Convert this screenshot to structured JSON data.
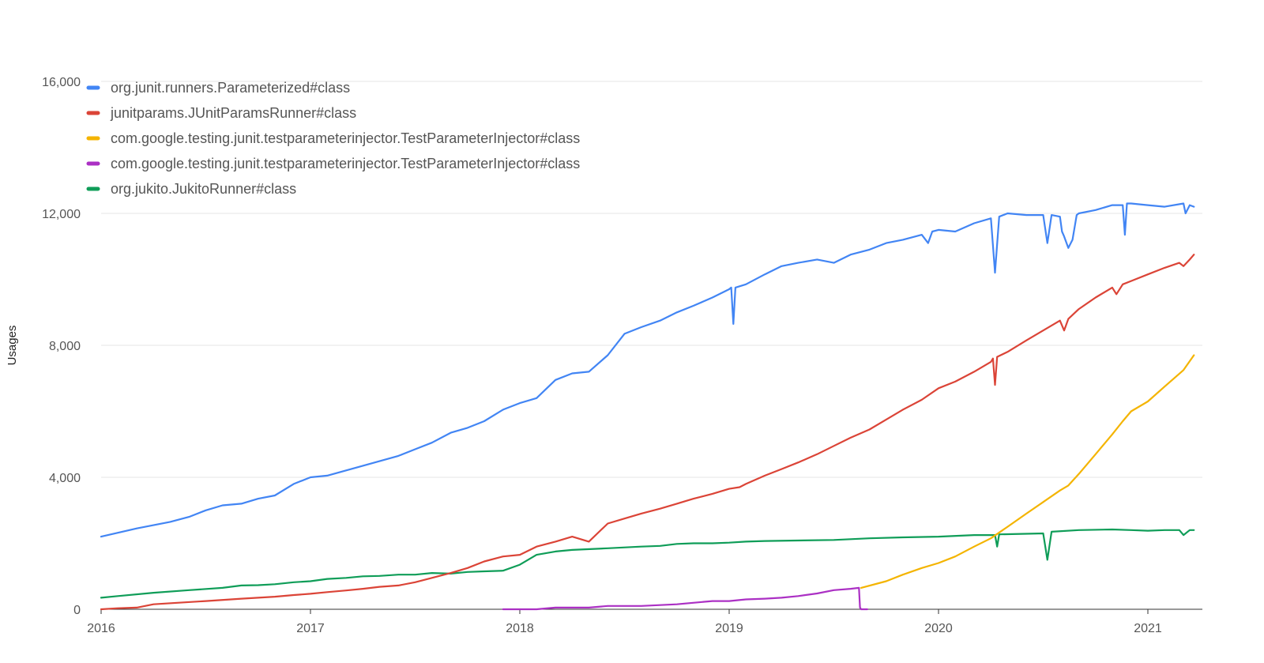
{
  "chart_data": {
    "type": "line",
    "title": "",
    "xlabel": "",
    "ylabel": "Usages",
    "ylim": [
      0,
      16000
    ],
    "xlim": [
      2016.0,
      2021.27
    ],
    "yticks": [
      0,
      4000,
      8000,
      12000,
      16000
    ],
    "ytick_labels": [
      "0",
      "4,000",
      "8,000",
      "12,000",
      "16,000"
    ],
    "xticks": [
      2016,
      2017,
      2018,
      2019,
      2020,
      2021
    ],
    "xtick_labels": [
      "2016",
      "2017",
      "2018",
      "2019",
      "2020",
      "2021"
    ],
    "grid": true,
    "legend_position": "top-left",
    "series": [
      {
        "name": "org.junit.runners.Parameterized#class",
        "color": "#4285F4",
        "points": [
          [
            2016.0,
            2200
          ],
          [
            2016.17,
            2450
          ],
          [
            2016.33,
            2650
          ],
          [
            2016.42,
            2800
          ],
          [
            2016.5,
            3000
          ],
          [
            2016.58,
            3150
          ],
          [
            2016.67,
            3200
          ],
          [
            2016.75,
            3350
          ],
          [
            2016.83,
            3450
          ],
          [
            2016.92,
            3800
          ],
          [
            2017.0,
            4000
          ],
          [
            2017.08,
            4050
          ],
          [
            2017.25,
            4350
          ],
          [
            2017.42,
            4650
          ],
          [
            2017.5,
            4850
          ],
          [
            2017.58,
            5050
          ],
          [
            2017.67,
            5350
          ],
          [
            2017.75,
            5500
          ],
          [
            2017.83,
            5700
          ],
          [
            2017.92,
            6050
          ],
          [
            2018.0,
            6250
          ],
          [
            2018.08,
            6400
          ],
          [
            2018.17,
            6950
          ],
          [
            2018.25,
            7150
          ],
          [
            2018.33,
            7200
          ],
          [
            2018.42,
            7700
          ],
          [
            2018.5,
            8350
          ],
          [
            2018.58,
            8550
          ],
          [
            2018.67,
            8750
          ],
          [
            2018.75,
            9000
          ],
          [
            2018.83,
            9200
          ],
          [
            2018.92,
            9450
          ],
          [
            2019.0,
            9700
          ],
          [
            2019.01,
            9750
          ],
          [
            2019.02,
            8650
          ],
          [
            2019.03,
            9750
          ],
          [
            2019.08,
            9850
          ],
          [
            2019.17,
            10150
          ],
          [
            2019.25,
            10400
          ],
          [
            2019.33,
            10500
          ],
          [
            2019.42,
            10600
          ],
          [
            2019.5,
            10500
          ],
          [
            2019.58,
            10750
          ],
          [
            2019.67,
            10900
          ],
          [
            2019.75,
            11100
          ],
          [
            2019.83,
            11200
          ],
          [
            2019.92,
            11350
          ],
          [
            2019.95,
            11100
          ],
          [
            2019.97,
            11450
          ],
          [
            2020.0,
            11500
          ],
          [
            2020.08,
            11450
          ],
          [
            2020.17,
            11700
          ],
          [
            2020.25,
            11850
          ],
          [
            2020.27,
            10200
          ],
          [
            2020.29,
            11900
          ],
          [
            2020.33,
            12000
          ],
          [
            2020.42,
            11950
          ],
          [
            2020.5,
            11950
          ],
          [
            2020.52,
            11100
          ],
          [
            2020.54,
            11950
          ],
          [
            2020.58,
            11900
          ],
          [
            2020.59,
            11450
          ],
          [
            2020.6,
            11300
          ],
          [
            2020.62,
            10950
          ],
          [
            2020.64,
            11200
          ],
          [
            2020.66,
            11950
          ],
          [
            2020.67,
            12000
          ],
          [
            2020.75,
            12100
          ],
          [
            2020.83,
            12250
          ],
          [
            2020.88,
            12250
          ],
          [
            2020.89,
            11350
          ],
          [
            2020.9,
            12300
          ],
          [
            2020.92,
            12300
          ],
          [
            2021.0,
            12250
          ],
          [
            2021.08,
            12200
          ],
          [
            2021.17,
            12300
          ],
          [
            2021.18,
            12000
          ],
          [
            2021.2,
            12250
          ],
          [
            2021.22,
            12200
          ]
        ]
      },
      {
        "name": "junitparams.JUnitParamsRunner#class",
        "color": "#DB4437",
        "points": [
          [
            2016.0,
            0
          ],
          [
            2016.08,
            30
          ],
          [
            2016.17,
            50
          ],
          [
            2016.25,
            150
          ],
          [
            2016.5,
            250
          ],
          [
            2016.67,
            320
          ],
          [
            2016.83,
            380
          ],
          [
            2016.92,
            430
          ],
          [
            2017.0,
            470
          ],
          [
            2017.08,
            520
          ],
          [
            2017.17,
            570
          ],
          [
            2017.25,
            620
          ],
          [
            2017.33,
            680
          ],
          [
            2017.42,
            720
          ],
          [
            2017.5,
            820
          ],
          [
            2017.58,
            950
          ],
          [
            2017.67,
            1100
          ],
          [
            2017.75,
            1250
          ],
          [
            2017.83,
            1450
          ],
          [
            2017.92,
            1600
          ],
          [
            2018.0,
            1650
          ],
          [
            2018.08,
            1900
          ],
          [
            2018.17,
            2050
          ],
          [
            2018.25,
            2200
          ],
          [
            2018.33,
            2050
          ],
          [
            2018.42,
            2600
          ],
          [
            2018.5,
            2750
          ],
          [
            2018.58,
            2900
          ],
          [
            2018.67,
            3050
          ],
          [
            2018.75,
            3200
          ],
          [
            2018.83,
            3350
          ],
          [
            2018.92,
            3500
          ],
          [
            2019.0,
            3650
          ],
          [
            2019.05,
            3700
          ],
          [
            2019.08,
            3800
          ],
          [
            2019.17,
            4050
          ],
          [
            2019.25,
            4250
          ],
          [
            2019.33,
            4450
          ],
          [
            2019.42,
            4700
          ],
          [
            2019.5,
            4950
          ],
          [
            2019.58,
            5200
          ],
          [
            2019.67,
            5450
          ],
          [
            2019.75,
            5750
          ],
          [
            2019.83,
            6050
          ],
          [
            2019.92,
            6350
          ],
          [
            2020.0,
            6700
          ],
          [
            2020.08,
            6900
          ],
          [
            2020.17,
            7200
          ],
          [
            2020.25,
            7500
          ],
          [
            2020.26,
            7600
          ],
          [
            2020.27,
            6800
          ],
          [
            2020.28,
            7650
          ],
          [
            2020.33,
            7800
          ],
          [
            2020.42,
            8150
          ],
          [
            2020.5,
            8450
          ],
          [
            2020.58,
            8750
          ],
          [
            2020.6,
            8450
          ],
          [
            2020.62,
            8800
          ],
          [
            2020.67,
            9100
          ],
          [
            2020.75,
            9450
          ],
          [
            2020.83,
            9750
          ],
          [
            2020.85,
            9550
          ],
          [
            2020.88,
            9850
          ],
          [
            2020.92,
            9950
          ],
          [
            2021.0,
            10150
          ],
          [
            2021.08,
            10350
          ],
          [
            2021.15,
            10500
          ],
          [
            2021.17,
            10400
          ],
          [
            2021.2,
            10600
          ],
          [
            2021.22,
            10750
          ]
        ]
      },
      {
        "name": "com.google.testing.junit.testparameterinjector.TestParameterInjector#class",
        "color": "#F4B400",
        "points": [
          [
            2019.63,
            650
          ],
          [
            2019.75,
            850
          ],
          [
            2019.83,
            1050
          ],
          [
            2019.92,
            1250
          ],
          [
            2020.0,
            1400
          ],
          [
            2020.08,
            1600
          ],
          [
            2020.17,
            1900
          ],
          [
            2020.25,
            2150
          ],
          [
            2020.33,
            2500
          ],
          [
            2020.42,
            2900
          ],
          [
            2020.5,
            3250
          ],
          [
            2020.58,
            3600
          ],
          [
            2020.62,
            3750
          ],
          [
            2020.67,
            4100
          ],
          [
            2020.75,
            4700
          ],
          [
            2020.83,
            5300
          ],
          [
            2020.88,
            5700
          ],
          [
            2020.92,
            6000
          ],
          [
            2021.0,
            6300
          ],
          [
            2021.08,
            6750
          ],
          [
            2021.17,
            7250
          ],
          [
            2021.22,
            7700
          ]
        ]
      },
      {
        "name": "com.google.testing.junit.testparameterinjector.TestParameterInjector#class",
        "color": "#AB30C4",
        "points": [
          [
            2017.92,
            0
          ],
          [
            2018.08,
            0
          ],
          [
            2018.17,
            50
          ],
          [
            2018.33,
            50
          ],
          [
            2018.42,
            100
          ],
          [
            2018.58,
            100
          ],
          [
            2018.75,
            150
          ],
          [
            2018.92,
            250
          ],
          [
            2019.0,
            250
          ],
          [
            2019.08,
            300
          ],
          [
            2019.17,
            320
          ],
          [
            2019.25,
            350
          ],
          [
            2019.33,
            400
          ],
          [
            2019.42,
            480
          ],
          [
            2019.5,
            580
          ],
          [
            2019.58,
            620
          ],
          [
            2019.62,
            650
          ],
          [
            2019.625,
            50
          ],
          [
            2019.63,
            0
          ],
          [
            2019.66,
            0
          ]
        ]
      },
      {
        "name": "org.jukito.JukitoRunner#class",
        "color": "#0F9D58",
        "points": [
          [
            2016.0,
            350
          ],
          [
            2016.08,
            400
          ],
          [
            2016.25,
            500
          ],
          [
            2016.42,
            580
          ],
          [
            2016.58,
            650
          ],
          [
            2016.67,
            720
          ],
          [
            2016.75,
            730
          ],
          [
            2016.83,
            760
          ],
          [
            2016.92,
            820
          ],
          [
            2017.0,
            850
          ],
          [
            2017.08,
            920
          ],
          [
            2017.17,
            950
          ],
          [
            2017.25,
            1000
          ],
          [
            2017.33,
            1010
          ],
          [
            2017.42,
            1050
          ],
          [
            2017.5,
            1050
          ],
          [
            2017.58,
            1100
          ],
          [
            2017.67,
            1080
          ],
          [
            2017.75,
            1130
          ],
          [
            2017.83,
            1150
          ],
          [
            2017.92,
            1170
          ],
          [
            2018.0,
            1350
          ],
          [
            2018.08,
            1650
          ],
          [
            2018.17,
            1750
          ],
          [
            2018.25,
            1800
          ],
          [
            2018.42,
            1850
          ],
          [
            2018.58,
            1900
          ],
          [
            2018.67,
            1920
          ],
          [
            2018.75,
            1980
          ],
          [
            2018.83,
            2000
          ],
          [
            2018.92,
            2000
          ],
          [
            2019.0,
            2020
          ],
          [
            2019.08,
            2050
          ],
          [
            2019.17,
            2070
          ],
          [
            2019.5,
            2100
          ],
          [
            2019.67,
            2150
          ],
          [
            2019.83,
            2180
          ],
          [
            2020.0,
            2200
          ],
          [
            2020.17,
            2250
          ],
          [
            2020.27,
            2250
          ],
          [
            2020.28,
            1900
          ],
          [
            2020.29,
            2270
          ],
          [
            2020.5,
            2300
          ],
          [
            2020.52,
            1500
          ],
          [
            2020.54,
            2350
          ],
          [
            2020.67,
            2400
          ],
          [
            2020.83,
            2420
          ],
          [
            2020.92,
            2400
          ],
          [
            2021.0,
            2380
          ],
          [
            2021.08,
            2400
          ],
          [
            2021.15,
            2400
          ],
          [
            2021.17,
            2250
          ],
          [
            2021.2,
            2400
          ],
          [
            2021.22,
            2400
          ]
        ]
      }
    ]
  }
}
